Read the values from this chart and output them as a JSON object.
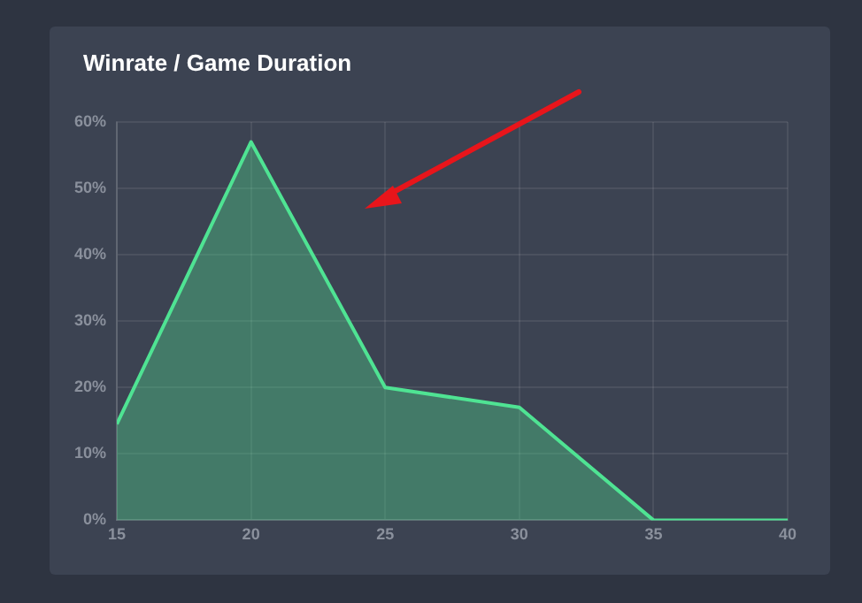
{
  "chart_data": {
    "type": "area",
    "title": "Winrate / Game Duration",
    "x": [
      15,
      20,
      25,
      30,
      35,
      40
    ],
    "series": [
      {
        "color": "#4fe393",
        "values": [
          14.5,
          57,
          20,
          17,
          0,
          0
        ]
      }
    ],
    "xlim": [
      15,
      40
    ],
    "xticks": [
      15,
      20,
      25,
      30,
      35,
      40
    ],
    "ylim": [
      0,
      60
    ],
    "yticks": [
      {
        "value": 0,
        "label": "0%"
      },
      {
        "value": 10,
        "label": "10%"
      },
      {
        "value": 20,
        "label": "20%"
      },
      {
        "value": 30,
        "label": "30%"
      },
      {
        "value": 40,
        "label": "40%"
      },
      {
        "value": 50,
        "label": "50%"
      },
      {
        "value": 60,
        "label": "60%"
      }
    ],
    "grid": true
  }
}
